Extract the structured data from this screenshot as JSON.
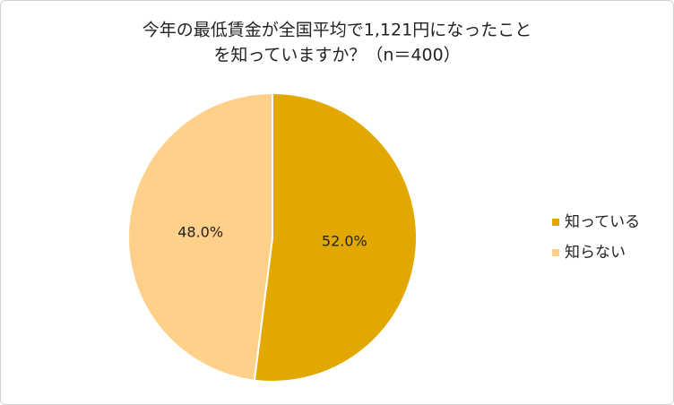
{
  "chart_data": {
    "type": "pie",
    "title": [
      "今年の最低賃金が全国平均で1,121円になったこと",
      "を知っていますか？（n＝400）"
    ],
    "categories": [
      "知っている",
      "知らない"
    ],
    "values": [
      52.0,
      48.0
    ],
    "value_labels": [
      "52.0%",
      "48.0%"
    ],
    "colors": [
      "#e2a800",
      "#ffd08a"
    ],
    "legend": "right"
  }
}
